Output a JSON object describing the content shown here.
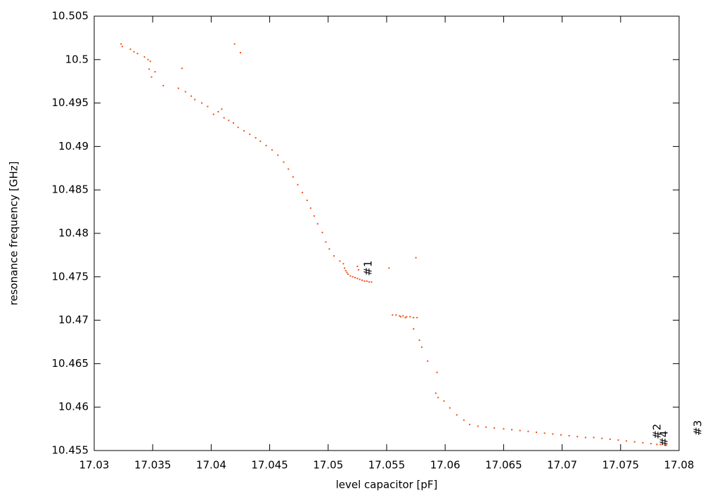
{
  "chart_data": {
    "type": "scatter",
    "xlabel": "level capacitor [pF]",
    "ylabel": "resonance frequency [GHz]",
    "xlim": [
      17.03,
      17.08
    ],
    "ylim": [
      10.455,
      10.505
    ],
    "xticks": [
      17.03,
      17.035,
      17.04,
      17.045,
      17.05,
      17.055,
      17.06,
      17.065,
      17.07,
      17.075,
      17.08
    ],
    "yticks": [
      10.455,
      10.46,
      10.465,
      10.47,
      10.475,
      10.48,
      10.485,
      10.49,
      10.495,
      10.5,
      10.505
    ],
    "color": "#f05010",
    "x": [
      17.0323,
      17.0324,
      17.0331,
      17.0334,
      17.0337,
      17.0343,
      17.0346,
      17.0348,
      17.0347,
      17.0349,
      17.0352,
      17.0359,
      17.0375,
      17.0372,
      17.0378,
      17.0383,
      17.0386,
      17.0392,
      17.0397,
      17.0402,
      17.0406,
      17.0409,
      17.0411,
      17.0415,
      17.0419,
      17.042,
      17.0425,
      17.0423,
      17.0428,
      17.0433,
      17.0438,
      17.0442,
      17.0447,
      17.0452,
      17.0457,
      17.0462,
      17.0466,
      17.047,
      17.0474,
      17.0478,
      17.0482,
      17.0485,
      17.0488,
      17.0491,
      17.0495,
      17.0498,
      17.0501,
      17.0505,
      17.051,
      17.0513,
      17.0514,
      17.0515,
      17.0516,
      17.0517,
      17.0519,
      17.0521,
      17.0523,
      17.0525,
      17.0527,
      17.0529,
      17.0531,
      17.0533,
      17.0535,
      17.0537,
      17.0525,
      17.0526,
      17.0552,
      17.0575,
      17.0555,
      17.0558,
      17.0561,
      17.0562,
      17.0564,
      17.0566,
      17.0567,
      17.057,
      17.0573,
      17.0576,
      17.0573,
      17.0578,
      17.058,
      17.0585,
      17.0593,
      17.0592,
      17.0594,
      17.0599,
      17.0604,
      17.061,
      17.0616,
      17.0621,
      17.0628,
      17.0635,
      17.0642,
      17.065,
      17.0657,
      17.0664,
      17.0671,
      17.0678,
      17.0685,
      17.0692,
      17.0699,
      17.0706,
      17.0713,
      17.072,
      17.0727,
      17.0734,
      17.0741,
      17.0748,
      17.0755,
      17.0762,
      17.0769,
      17.0776,
      17.0781,
      17.0784,
      17.0786,
      17.0788,
      17.0789
    ],
    "y": [
      10.5018,
      10.5015,
      10.5012,
      10.5009,
      10.5007,
      10.5003,
      10.5,
      10.4998,
      10.4989,
      10.498,
      10.4986,
      10.497,
      10.499,
      10.4967,
      10.4963,
      10.4958,
      10.4954,
      10.495,
      10.4946,
      10.4937,
      10.494,
      10.4943,
      10.4933,
      10.493,
      10.4927,
      10.5018,
      10.5008,
      10.4922,
      10.4918,
      10.4914,
      10.491,
      10.4906,
      10.4901,
      10.4896,
      10.489,
      10.4882,
      10.4874,
      10.4865,
      10.4856,
      10.4847,
      10.4838,
      10.4829,
      10.482,
      10.4811,
      10.4801,
      10.479,
      10.4782,
      10.4774,
      10.4768,
      10.4765,
      10.476,
      10.4757,
      10.4755,
      10.4753,
      10.4751,
      10.475,
      10.4749,
      10.4748,
      10.4747,
      10.4746,
      10.4745,
      10.4745,
      10.4744,
      10.4744,
      10.4762,
      10.4758,
      10.476,
      10.4772,
      10.4706,
      10.4706,
      10.4705,
      10.4704,
      10.4705,
      10.4703,
      10.4704,
      10.4704,
      10.4703,
      10.4703,
      10.469,
      10.4677,
      10.4669,
      10.4653,
      10.464,
      10.4616,
      10.4611,
      10.4607,
      10.4599,
      10.4591,
      10.4585,
      10.458,
      10.4578,
      10.4577,
      10.4576,
      10.4575,
      10.4574,
      10.4573,
      10.4572,
      10.4571,
      10.457,
      10.4569,
      10.4568,
      10.4567,
      10.4566,
      10.4565,
      10.4565,
      10.4564,
      10.4563,
      10.4562,
      10.4561,
      10.456,
      10.4559,
      10.4558,
      10.4557,
      10.4557,
      10.4557,
      10.4556,
      10.4556
    ],
    "annotations": [
      {
        "text": "#1",
        "x": 17.0537,
        "y": 10.4751
      },
      {
        "text": "#2",
        "x": 17.0784,
        "y": 10.4563
      },
      {
        "text": "#3",
        "x": 17.0819,
        "y": 10.4567
      },
      {
        "text": "#4",
        "x": 17.079,
        "y": 10.4555
      }
    ]
  }
}
